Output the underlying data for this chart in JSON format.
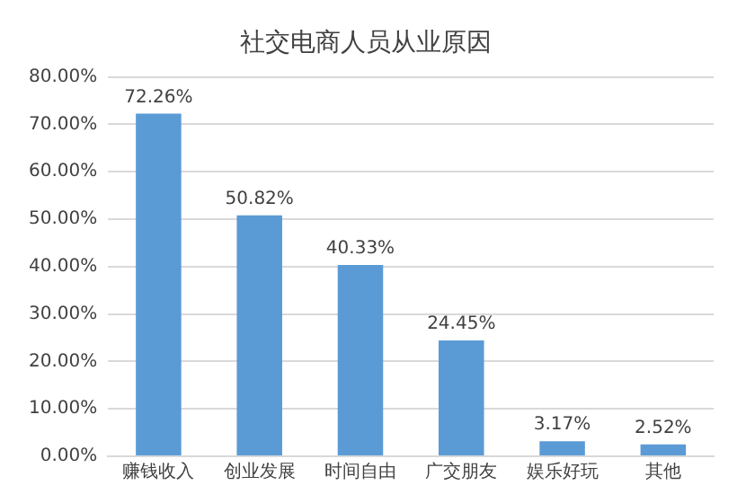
{
  "chart_data": {
    "type": "bar",
    "title": "社交电商人员从业原因",
    "categories": [
      "赚钱收入",
      "创业发展",
      "时间自由",
      "广交朋友",
      "娱乐好玩",
      "其他"
    ],
    "values": [
      72.26,
      50.82,
      40.33,
      24.45,
      3.17,
      2.52
    ],
    "value_labels": [
      "72.26%",
      "50.82%",
      "40.33%",
      "24.45%",
      "3.17%",
      "2.52%"
    ],
    "color": "#5b9bd5",
    "ylim": [
      0,
      80
    ],
    "yticks": [
      {
        "value": 0,
        "label": "0.00%"
      },
      {
        "value": 10,
        "label": "10.00%"
      },
      {
        "value": 20,
        "label": "20.00%"
      },
      {
        "value": 30,
        "label": "30.00%"
      },
      {
        "value": 40,
        "label": "40.00%"
      },
      {
        "value": 50,
        "label": "50.00%"
      },
      {
        "value": 60,
        "label": "60.00%"
      },
      {
        "value": 70,
        "label": "70.00%"
      },
      {
        "value": 80,
        "label": "80.00%"
      }
    ],
    "grid": "y"
  }
}
